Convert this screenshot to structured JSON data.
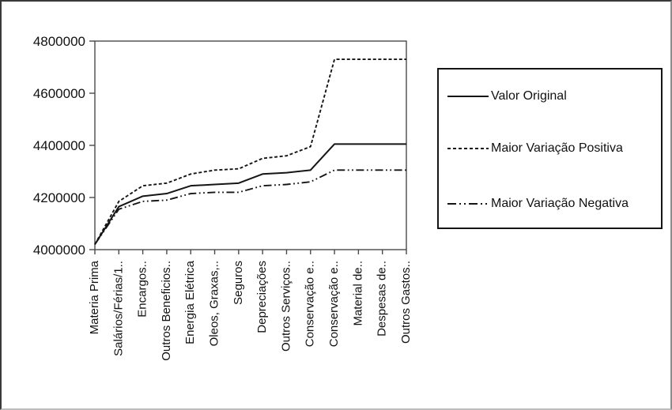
{
  "chart_data": {
    "type": "line",
    "title": "",
    "xlabel": "",
    "ylabel": "",
    "grid": false,
    "legend_position": "right-box",
    "line_color": "#151515",
    "ylim": [
      4000000,
      4800000
    ],
    "y_ticks": [
      4000000,
      4200000,
      4400000,
      4600000,
      4800000
    ],
    "y_tick_labels": [
      "4000000",
      "4200000",
      "4400000",
      "4600000",
      "4800000"
    ],
    "categories": [
      "Materia Prima",
      "Salários/Férias/1..",
      "Encargos..",
      "Outros Beneficios..",
      "Energia Elétrica",
      "Oleos, Graxas,..",
      "Seguros",
      "Depreciações",
      "Outros Serviços..",
      "Conservação e..",
      "Conservação e..",
      "Material de..",
      "Despesas de..",
      "Outros Gastos.."
    ],
    "series": [
      {
        "name": "Valor Original",
        "line_style": "solid",
        "values": [
          4020000,
          4165000,
          4205000,
          4215000,
          4245000,
          4250000,
          4255000,
          4290000,
          4295000,
          4305000,
          4405000,
          4405000,
          4405000,
          4405000
        ]
      },
      {
        "name": "Maior Variação Positiva",
        "line_style": "dashed",
        "values": [
          4020000,
          4185000,
          4245000,
          4255000,
          4290000,
          4305000,
          4310000,
          4350000,
          4360000,
          4395000,
          4730000,
          4730000,
          4730000,
          4730000
        ]
      },
      {
        "name": "Maior Variação Negativa",
        "line_style": "dash-dot-dot",
        "values": [
          4020000,
          4155000,
          4185000,
          4190000,
          4215000,
          4220000,
          4220000,
          4245000,
          4250000,
          4260000,
          4305000,
          4305000,
          4305000,
          4305000
        ]
      }
    ]
  }
}
